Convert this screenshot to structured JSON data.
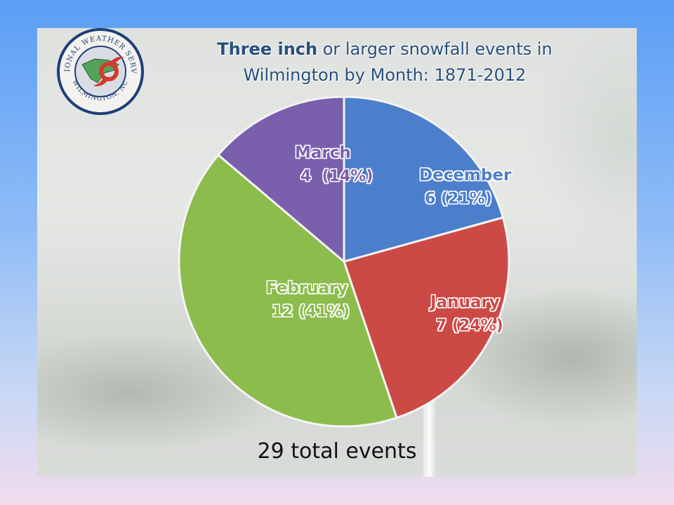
{
  "slide": {
    "title_part1": "Three inch",
    "title_part2": " or larger snowfall events in",
    "title_line2": "Wilmington by Month: 1871-2012",
    "footer": "29 total events",
    "logo": {
      "text_top": "NATIONAL WEATHER SERVICE",
      "text_bottom": "WILMINGTON, NC",
      "icon": "hurricane-symbol-icon"
    }
  },
  "chart_data": {
    "type": "pie",
    "title": "Three inch or larger snowfall events in Wilmington by Month: 1871-2012",
    "total_label": "29 total events",
    "slices": [
      {
        "name": "December",
        "value": 6,
        "percent": "21%",
        "label": "6 (21%)",
        "color": "#4b7fcb"
      },
      {
        "name": "January",
        "value": 7,
        "percent": "24%",
        "label": "7 (24%)",
        "color": "#cc4a46"
      },
      {
        "name": "February",
        "value": 12,
        "percent": "41%",
        "label": "12 (41%)",
        "color": "#8cbc4c"
      },
      {
        "name": "March",
        "value": 4,
        "percent": "14%",
        "label": "4  (14%)",
        "color": "#7a5fad"
      }
    ]
  }
}
